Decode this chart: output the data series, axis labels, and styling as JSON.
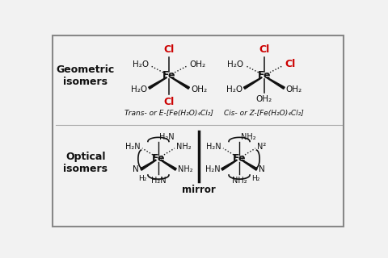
{
  "bg_color": "#f2f2f2",
  "border_color": "#888888",
  "title_geo": "Geometric\nisomers",
  "title_opt": "Optical\nisomers",
  "red_color": "#cc0000",
  "black_color": "#111111",
  "mirror_label": "mirror"
}
